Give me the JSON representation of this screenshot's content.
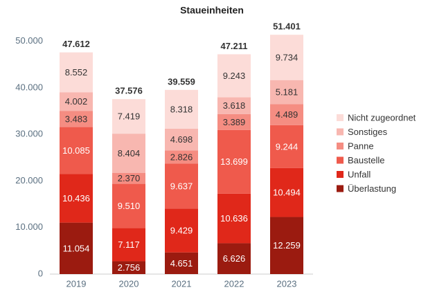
{
  "chart_data": {
    "type": "stacked_bar",
    "title": "Staueinheiten",
    "categories": [
      "2019",
      "2020",
      "2021",
      "2022",
      "2023"
    ],
    "series": [
      {
        "name": "Überlastung",
        "color": "#9b1b10",
        "label_color": "#ffffff",
        "values": [
          11054,
          2756,
          4651,
          6626,
          12259
        ],
        "value_labels": [
          "11.054",
          "2.756",
          "4.651",
          "6.626",
          "12.259"
        ]
      },
      {
        "name": "Unfall",
        "color": "#e0281a",
        "label_color": "#ffffff",
        "values": [
          10436,
          7117,
          9429,
          10636,
          10494
        ],
        "value_labels": [
          "10.436",
          "7.117",
          "9.429",
          "10.636",
          "10.494"
        ]
      },
      {
        "name": "Baustelle",
        "color": "#ef5a4c",
        "label_color": "#ffffff",
        "values": [
          10085,
          9510,
          9637,
          13699,
          9244
        ],
        "value_labels": [
          "10.085",
          "9.510",
          "9.637",
          "13.699",
          "9.244"
        ]
      },
      {
        "name": "Panne",
        "color": "#f58d82",
        "label_color": "#333333",
        "values": [
          3483,
          2370,
          2826,
          3389,
          4489
        ],
        "value_labels": [
          "3.483",
          "2.370",
          "2.826",
          "3.389",
          "4.489"
        ]
      },
      {
        "name": "Sonstiges",
        "color": "#f8b7b0",
        "label_color": "#333333",
        "values": [
          4002,
          8404,
          4698,
          3618,
          5181
        ],
        "value_labels": [
          "4.002",
          "8.404",
          "4.698",
          "3.618",
          "5.181"
        ]
      },
      {
        "name": "Nicht zugeordnet",
        "color": "#fcdcd8",
        "label_color": "#333333",
        "values": [
          8552,
          7419,
          8318,
          9243,
          9734
        ],
        "value_labels": [
          "8.552",
          "7.419",
          "8.318",
          "9.243",
          "9.734"
        ]
      }
    ],
    "totals": {
      "values": [
        47612,
        37576,
        39559,
        47211,
        51401
      ],
      "value_labels": [
        "47.612",
        "37.576",
        "39.559",
        "47.211",
        "51.401"
      ]
    },
    "ylim": [
      0,
      55000
    ],
    "yticks": [
      0,
      {
        "value": 10000,
        "label": "10.000"
      },
      {
        "value": 20000,
        "label": "20.000"
      },
      {
        "value": 30000,
        "label": "30.000"
      },
      {
        "value": 40000,
        "label": "40.000"
      },
      {
        "value": 50000,
        "label": "50.000"
      }
    ],
    "legend": "right"
  }
}
